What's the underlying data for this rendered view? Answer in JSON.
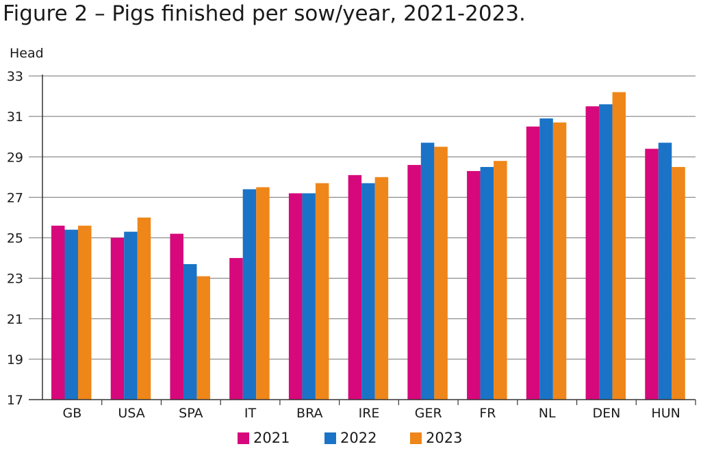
{
  "title": "Figure 2 – Pigs finished per sow/year, 2021-2023.",
  "chart_data": {
    "type": "bar",
    "ylabel": "Head",
    "ylim": [
      17,
      33
    ],
    "yticks": [
      "17",
      "19",
      "21",
      "23",
      "25",
      "27",
      "29",
      "31",
      "33"
    ],
    "categories": [
      "GB",
      "USA",
      "SPA",
      "IT",
      "BRA",
      "IRE",
      "GER",
      "FR",
      "NL",
      "DEN",
      "HUN"
    ],
    "series": [
      {
        "name": "2021",
        "color": "#d6087b",
        "values": [
          25.6,
          25.0,
          25.2,
          24.0,
          27.2,
          28.1,
          28.6,
          28.3,
          30.5,
          31.5,
          29.4
        ]
      },
      {
        "name": "2022",
        "color": "#1a73c6",
        "values": [
          25.4,
          25.3,
          23.7,
          27.4,
          27.2,
          27.7,
          29.7,
          28.5,
          30.9,
          31.6,
          29.7
        ]
      },
      {
        "name": "2023",
        "color": "#ef8619",
        "values": [
          25.6,
          26.0,
          23.1,
          27.5,
          27.7,
          28.0,
          29.5,
          28.8,
          30.7,
          32.2,
          28.5
        ]
      }
    ],
    "grid": true,
    "legend": "bottom"
  }
}
